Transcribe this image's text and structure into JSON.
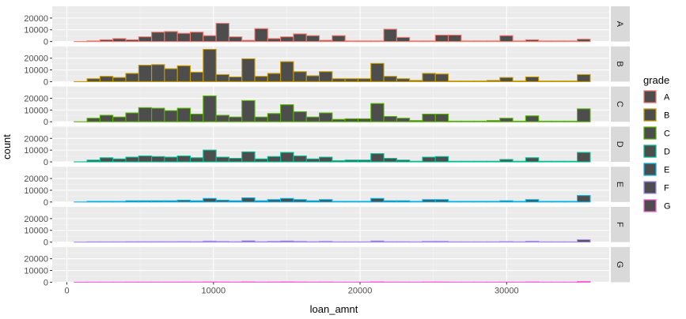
{
  "chart_data": {
    "type": "bar",
    "subtype": "faceted-histogram",
    "title": "",
    "xlabel": "loan_amnt",
    "ylabel": "count",
    "xlim": [
      -1000,
      37000
    ],
    "ylim": [
      0,
      30000
    ],
    "x_ticks": [
      0,
      10000,
      20000,
      30000
    ],
    "x_tick_labels": [
      "0",
      "10000",
      "20000",
      "30000"
    ],
    "y_ticks": [
      0,
      10000,
      20000
    ],
    "y_tick_labels": [
      "0",
      "10000",
      "20000"
    ],
    "grid": true,
    "bins": {
      "start": 500,
      "width": 880,
      "count": 40
    },
    "bar_fill": "#4d4d4d",
    "legend": {
      "title": "grade",
      "position": "right",
      "entries": [
        "A",
        "B",
        "C",
        "D",
        "E",
        "F",
        "G"
      ]
    },
    "series": [
      {
        "name": "A",
        "color": "#F8766D",
        "values": [
          0,
          500,
          1500,
          2500,
          1500,
          4000,
          8000,
          8500,
          7000,
          8000,
          5000,
          15500,
          4000,
          1000,
          11000,
          2500,
          4000,
          6500,
          5000,
          1000,
          5000,
          500,
          500,
          500,
          10500,
          3500,
          500,
          500,
          5500,
          5500,
          500,
          500,
          500,
          5000,
          500,
          1500,
          500,
          500,
          500,
          2000
        ]
      },
      {
        "name": "B",
        "color": "#C49A00",
        "values": [
          0,
          2500,
          4500,
          3500,
          7000,
          14000,
          14500,
          11000,
          13500,
          8000,
          27500,
          6000,
          4000,
          19500,
          4500,
          7000,
          17000,
          8500,
          5000,
          8500,
          2500,
          2500,
          2500,
          15500,
          4500,
          2500,
          1000,
          7000,
          6500,
          500,
          500,
          500,
          1000,
          3500,
          500,
          4000,
          500,
          500,
          500,
          6000
        ]
      },
      {
        "name": "C",
        "color": "#53B400",
        "values": [
          0,
          3000,
          5500,
          4000,
          7500,
          12000,
          11500,
          9500,
          11500,
          6500,
          22000,
          5500,
          4000,
          18000,
          4000,
          7000,
          14500,
          8500,
          4000,
          7500,
          2000,
          2500,
          2500,
          15500,
          4500,
          3000,
          1000,
          6500,
          6500,
          500,
          500,
          500,
          1000,
          3000,
          500,
          5000,
          500,
          500,
          500,
          11000
        ]
      },
      {
        "name": "D",
        "color": "#00C094",
        "values": [
          0,
          1500,
          3500,
          2500,
          4000,
          5000,
          4500,
          4000,
          5000,
          3500,
          10000,
          4000,
          3000,
          8500,
          2500,
          4500,
          8000,
          5000,
          2500,
          4000,
          1000,
          1500,
          1500,
          7000,
          3000,
          1500,
          500,
          4000,
          4500,
          500,
          500,
          500,
          500,
          2000,
          500,
          3500,
          500,
          500,
          500,
          8000
        ]
      },
      {
        "name": "E",
        "color": "#00B6EB",
        "values": [
          0,
          500,
          500,
          500,
          1000,
          1000,
          1000,
          1000,
          1500,
          1000,
          3000,
          1500,
          1000,
          3500,
          1000,
          2000,
          3000,
          2000,
          1000,
          2000,
          500,
          500,
          500,
          3000,
          1000,
          1000,
          500,
          2000,
          2000,
          500,
          500,
          500,
          500,
          1000,
          500,
          2000,
          500,
          500,
          500,
          5500
        ]
      },
      {
        "name": "F",
        "color": "#A58AFF",
        "values": [
          0,
          200,
          200,
          200,
          300,
          300,
          300,
          300,
          400,
          300,
          800,
          500,
          300,
          1000,
          300,
          600,
          900,
          600,
          300,
          600,
          200,
          200,
          200,
          900,
          300,
          300,
          200,
          600,
          600,
          200,
          200,
          200,
          200,
          400,
          200,
          700,
          200,
          200,
          200,
          2000
        ]
      },
      {
        "name": "G",
        "color": "#FB61D7",
        "values": [
          0,
          50,
          50,
          50,
          80,
          80,
          80,
          80,
          100,
          80,
          200,
          150,
          80,
          250,
          80,
          150,
          250,
          150,
          80,
          150,
          50,
          50,
          50,
          250,
          80,
          80,
          50,
          150,
          150,
          50,
          50,
          50,
          50,
          100,
          50,
          200,
          50,
          50,
          50,
          600
        ]
      }
    ]
  }
}
